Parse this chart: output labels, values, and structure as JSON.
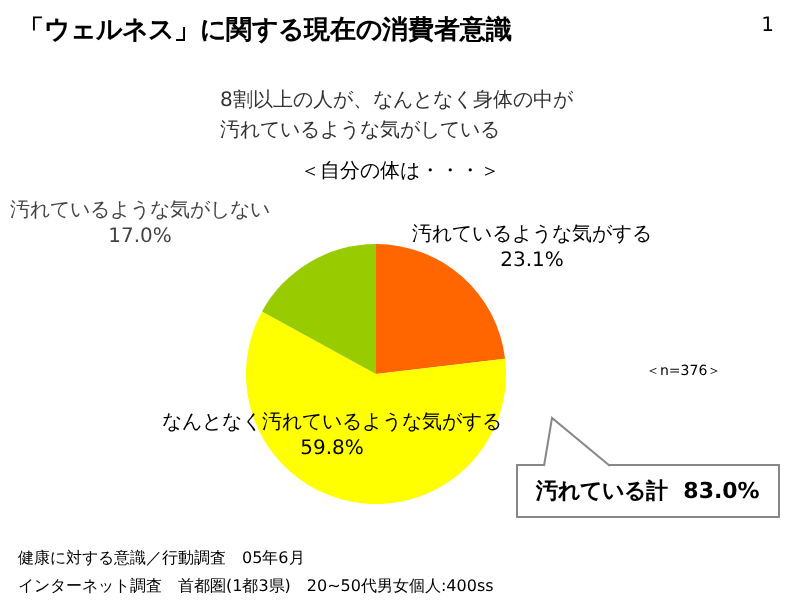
{
  "chart_data": {
    "type": "pie",
    "title": "「ウェルネス」に関する現在の消費者意識",
    "subtitle": "8割以上の人が、なんとなく身体の中が汚れているような気がしている",
    "categories": [
      "汚れているような気がする",
      "なんとなく汚れているような気がする",
      "汚れているような気がしない"
    ],
    "values": [
      23.1,
      59.8,
      17.0
    ],
    "value_labels": [
      "23.1%",
      "59.8%",
      "17.0%"
    ],
    "colors": [
      "#ff6600",
      "#ffff00",
      "#99cc00"
    ],
    "legend": false,
    "annotations": [
      "1",
      "＜自分の体は・・・＞",
      "＜n=376＞",
      "汚れている計  83.0%",
      "健康に対する意識／行動調査　05年6月",
      "インターネット調査　首都圏(1都3県)　20~50代男女個人:400ss"
    ]
  }
}
